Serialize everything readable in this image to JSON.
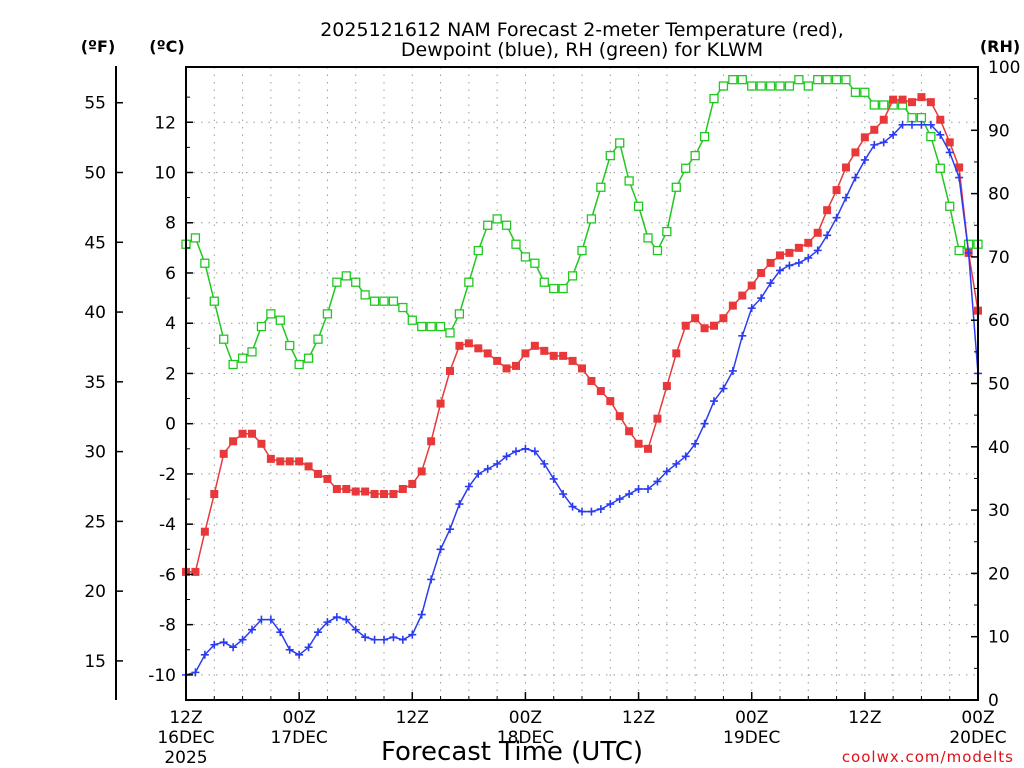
{
  "chart_data": {
    "type": "line",
    "title_line1": "2025121612 NAM Forecast 2-meter Temperature (red),",
    "title_line2": "Dewpoint (blue), RH (green) for KLWM",
    "xlabel": "Forecast Time (UTC)",
    "credit": "coolwx.com/modelts",
    "units": {
      "f": "(ºF)",
      "c": "(ºC)",
      "rh": "(RH)"
    },
    "x_range_hours": [
      0,
      84
    ],
    "x_ticks": [
      {
        "hour": 0,
        "l1": "12Z",
        "l2": "16DEC",
        "l3": "2025"
      },
      {
        "hour": 12,
        "l1": "00Z",
        "l2": "17DEC",
        "l3": ""
      },
      {
        "hour": 24,
        "l1": "12Z",
        "l2": "",
        "l3": ""
      },
      {
        "hour": 36,
        "l1": "00Z",
        "l2": "18DEC",
        "l3": ""
      },
      {
        "hour": 48,
        "l1": "12Z",
        "l2": "",
        "l3": ""
      },
      {
        "hour": 60,
        "l1": "00Z",
        "l2": "19DEC",
        "l3": ""
      },
      {
        "hour": 72,
        "l1": "12Z",
        "l2": "",
        "l3": ""
      },
      {
        "hour": 84,
        "l1": "00Z",
        "l2": "20DEC",
        "l3": ""
      }
    ],
    "c_range": [
      -11,
      14.2
    ],
    "c_ticks": [
      "-10",
      "-8",
      "-6",
      "-4",
      "-2",
      "0",
      "2",
      "4",
      "6",
      "8",
      "10",
      "12"
    ],
    "f_ticks": [
      "15",
      "20",
      "25",
      "30",
      "35",
      "40",
      "45",
      "50",
      "55"
    ],
    "rh_range": [
      0,
      100
    ],
    "rh_ticks": [
      "0",
      "10",
      "20",
      "30",
      "40",
      "50",
      "60",
      "70",
      "80",
      "90",
      "100"
    ],
    "series": [
      {
        "name": "Temperature",
        "units": "C",
        "color": "#e8383a",
        "marker": "square-filled",
        "values": [
          -5.9,
          -5.9,
          -4.3,
          -2.8,
          -1.2,
          -0.7,
          -0.4,
          -0.4,
          -0.8,
          -1.4,
          -1.5,
          -1.5,
          -1.5,
          -1.7,
          -2.0,
          -2.2,
          -2.6,
          -2.6,
          -2.7,
          -2.7,
          -2.8,
          -2.8,
          -2.8,
          -2.6,
          -2.4,
          -1.9,
          -0.7,
          0.8,
          2.1,
          3.1,
          3.2,
          3.0,
          2.8,
          2.5,
          2.2,
          2.3,
          2.8,
          3.1,
          2.9,
          2.7,
          2.7,
          2.5,
          2.2,
          1.7,
          1.3,
          0.9,
          0.3,
          -0.3,
          -0.8,
          -1.0,
          0.2,
          1.5,
          2.8,
          3.9,
          4.2,
          3.8,
          3.9,
          4.2,
          4.7,
          5.1,
          5.5,
          6.0,
          6.4,
          6.7,
          6.8,
          7.0,
          7.2,
          7.6,
          8.5,
          9.3,
          10.2,
          10.8,
          11.4,
          11.7,
          12.1,
          12.9,
          12.9,
          12.8,
          13.0,
          12.8,
          12.1,
          11.2,
          10.2,
          6.8,
          4.5
        ]
      },
      {
        "name": "Dewpoint",
        "units": "C",
        "color": "#2b3cf0",
        "marker": "plus",
        "values": [
          -10.0,
          -9.9,
          -9.2,
          -8.8,
          -8.7,
          -8.9,
          -8.6,
          -8.2,
          -7.8,
          -7.8,
          -8.3,
          -9.0,
          -9.2,
          -8.9,
          -8.3,
          -7.9,
          -7.7,
          -7.8,
          -8.2,
          -8.5,
          -8.6,
          -8.6,
          -8.5,
          -8.6,
          -8.4,
          -7.6,
          -6.2,
          -5.0,
          -4.2,
          -3.2,
          -2.5,
          -2.0,
          -1.8,
          -1.6,
          -1.3,
          -1.1,
          -1.0,
          -1.1,
          -1.6,
          -2.2,
          -2.8,
          -3.3,
          -3.5,
          -3.5,
          -3.4,
          -3.2,
          -3.0,
          -2.8,
          -2.6,
          -2.6,
          -2.3,
          -1.9,
          -1.6,
          -1.3,
          -0.8,
          0.0,
          0.9,
          1.4,
          2.1,
          3.5,
          4.6,
          5.0,
          5.6,
          6.1,
          6.3,
          6.4,
          6.6,
          6.9,
          7.5,
          8.2,
          9.0,
          9.8,
          10.5,
          11.1,
          11.2,
          11.5,
          11.9,
          11.9,
          11.9,
          11.9,
          11.5,
          10.8,
          9.8,
          6.8,
          2.0
        ]
      },
      {
        "name": "RH",
        "units": "%",
        "color": "#20c820",
        "marker": "square-open",
        "values": [
          72,
          73,
          69,
          63,
          57,
          53,
          54,
          55,
          59,
          61,
          60,
          56,
          53,
          54,
          57,
          61,
          66,
          67,
          66,
          64,
          63,
          63,
          63,
          62,
          60,
          59,
          59,
          59,
          58,
          61,
          66,
          71,
          75,
          76,
          75,
          72,
          70,
          69,
          66,
          65,
          65,
          67,
          71,
          76,
          81,
          86,
          88,
          82,
          78,
          73,
          71,
          74,
          81,
          84,
          86,
          89,
          95,
          97,
          98,
          98,
          97,
          97,
          97,
          97,
          97,
          98,
          97,
          98,
          98,
          98,
          98,
          96,
          96,
          94,
          94,
          94,
          94,
          92,
          92,
          89,
          84,
          78,
          71,
          72,
          72
        ]
      }
    ]
  }
}
